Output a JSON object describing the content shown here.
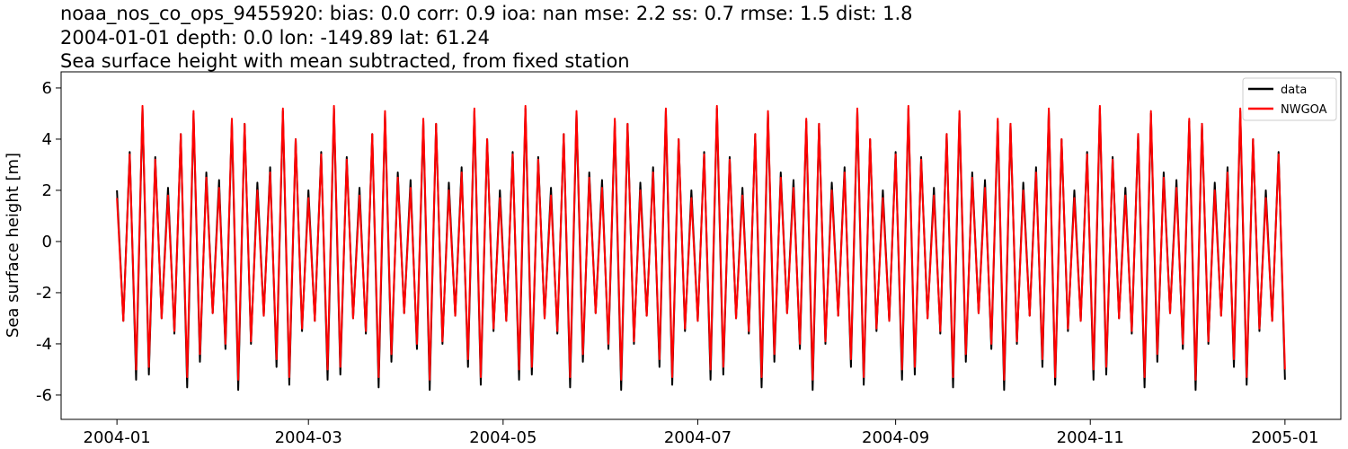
{
  "chart_data": {
    "type": "line",
    "title_lines": [
      "noaa_nos_co_ops_9455920: bias: 0.0  corr: 0.9  ioa: nan  mse: 2.2  ss: 0.7  rmse: 1.5  dist: 1.8",
      "2004-01-01 depth: 0.0 lon: -149.89 lat: 61.24",
      "Sea surface height with mean subtracted, from fixed station"
    ],
    "ylabel": "Sea surface height [m]",
    "x": [
      0,
      2,
      4,
      6,
      8,
      10,
      12,
      14,
      16,
      18,
      20,
      22,
      24,
      26,
      28,
      30,
      32,
      34,
      36,
      38,
      40,
      42,
      44,
      46,
      48,
      50,
      52,
      54,
      56,
      58,
      60,
      62,
      64,
      66,
      68,
      70,
      72,
      74,
      76,
      78,
      80,
      82,
      84,
      86,
      88,
      90,
      92,
      94,
      96,
      98,
      100,
      102,
      104,
      106,
      108,
      110,
      112,
      114,
      116,
      118,
      120,
      122,
      124,
      126,
      128,
      130,
      132,
      134,
      136,
      138,
      140,
      142,
      144,
      146,
      148,
      150,
      152,
      154,
      156,
      158,
      160,
      162,
      164,
      166,
      168,
      170,
      172,
      174,
      176,
      178,
      180,
      182,
      184,
      186,
      188,
      190,
      192,
      194,
      196,
      198,
      200,
      202,
      204,
      206,
      208,
      210,
      212,
      214,
      216,
      218,
      220,
      222,
      224,
      226,
      228,
      230,
      232,
      234,
      236,
      238,
      240,
      242,
      244,
      246,
      248,
      250,
      252,
      254,
      256,
      258,
      260,
      262,
      264,
      266,
      268,
      270,
      272,
      274,
      276,
      278,
      280,
      282,
      284,
      286,
      288,
      290,
      292,
      294,
      296,
      298,
      300,
      302,
      304,
      306,
      308,
      310,
      312,
      314,
      316,
      318,
      320,
      322,
      324,
      326,
      328,
      330,
      332,
      334,
      336,
      338,
      340,
      342,
      344,
      346,
      348,
      350,
      352,
      354,
      356,
      358,
      360,
      362,
      364,
      366
    ],
    "series": [
      {
        "name": "data",
        "color": "#000000",
        "values": [
          2.0,
          -3.1,
          3.5,
          -5.4,
          5.2,
          -5.2,
          3.3,
          -3.0,
          2.1,
          -3.6,
          4.2,
          -5.7,
          5.0,
          -4.7,
          2.7,
          -2.8,
          2.4,
          -4.2,
          4.7,
          -5.8,
          4.6,
          -4.0,
          2.3,
          -2.9,
          2.9,
          -4.9,
          5.1,
          -5.6,
          4.0,
          -3.5,
          2.0,
          -3.1,
          3.5,
          -5.4,
          5.2,
          -5.2,
          3.3,
          -3.0,
          2.1,
          -3.6,
          4.2,
          -5.7,
          5.0,
          -4.7,
          2.7,
          -2.8,
          2.4,
          -4.2,
          4.7,
          -5.8,
          4.6,
          -4.0,
          2.3,
          -2.9,
          2.9,
          -4.9,
          5.1,
          -5.6,
          4.0,
          -3.5,
          2.0,
          -3.1,
          3.5,
          -5.4,
          5.2,
          -5.2,
          3.3,
          -3.0,
          2.1,
          -3.6,
          4.2,
          -5.7,
          5.0,
          -4.7,
          2.7,
          -2.8,
          2.4,
          -4.2,
          4.7,
          -5.8,
          4.6,
          -4.0,
          2.3,
          -2.9,
          2.9,
          -4.9,
          5.1,
          -5.6,
          4.0,
          -3.5,
          2.0,
          -3.1,
          3.5,
          -5.4,
          5.2,
          -5.2,
          3.3,
          -3.0,
          2.1,
          -3.6,
          4.2,
          -5.7,
          5.0,
          -4.7,
          2.7,
          -2.8,
          2.4,
          -4.2,
          4.7,
          -5.8,
          4.6,
          -4.0,
          2.3,
          -2.9,
          2.9,
          -4.9,
          5.1,
          -5.6,
          4.0,
          -3.5,
          2.0,
          -3.1,
          3.5,
          -5.4,
          5.2,
          -5.2,
          3.3,
          -3.0,
          2.1,
          -3.6,
          4.2,
          -5.7,
          5.0,
          -4.7,
          2.7,
          -2.8,
          2.4,
          -4.2,
          4.7,
          -5.8,
          4.6,
          -4.0,
          2.3,
          -2.9,
          2.9,
          -4.9,
          5.1,
          -5.6,
          4.0,
          -3.5,
          2.0,
          -3.1,
          3.5,
          -5.4,
          5.2,
          -5.2,
          3.3,
          -3.0,
          2.1,
          -3.6,
          4.2,
          -5.7,
          5.0,
          -4.7,
          2.7,
          -2.8,
          2.4,
          -4.2,
          4.7,
          -5.8,
          4.6,
          -4.0,
          2.3,
          -2.9,
          2.9,
          -4.9,
          5.1,
          -5.6,
          4.0,
          -3.5,
          2.0,
          -3.1,
          3.5,
          -5.4
        ]
      },
      {
        "name": "NWGOA",
        "color": "#ff0000",
        "values": [
          1.7,
          -3.1,
          3.4,
          -5.0,
          5.3,
          -4.9,
          3.2,
          -3.0,
          1.8,
          -3.5,
          4.2,
          -5.3,
          5.1,
          -4.4,
          2.5,
          -2.8,
          2.1,
          -4.0,
          4.8,
          -5.4,
          4.6,
          -3.9,
          2.0,
          -2.9,
          2.7,
          -4.6,
          5.2,
          -5.3,
          4.0,
          -3.4,
          1.7,
          -3.1,
          3.4,
          -5.0,
          5.3,
          -4.9,
          3.2,
          -3.0,
          1.8,
          -3.5,
          4.2,
          -5.3,
          5.1,
          -4.4,
          2.5,
          -2.8,
          2.1,
          -4.0,
          4.8,
          -5.4,
          4.6,
          -3.9,
          2.0,
          -2.9,
          2.7,
          -4.6,
          5.2,
          -5.3,
          4.0,
          -3.4,
          1.7,
          -3.1,
          3.4,
          -5.0,
          5.3,
          -4.9,
          3.2,
          -3.0,
          1.8,
          -3.5,
          4.2,
          -5.3,
          5.1,
          -4.4,
          2.5,
          -2.8,
          2.1,
          -4.0,
          4.8,
          -5.4,
          4.6,
          -3.9,
          2.0,
          -2.9,
          2.7,
          -4.6,
          5.2,
          -5.3,
          4.0,
          -3.4,
          1.7,
          -3.1,
          3.4,
          -5.0,
          5.3,
          -4.9,
          3.2,
          -3.0,
          1.8,
          -3.5,
          4.2,
          -5.3,
          5.1,
          -4.4,
          2.5,
          -2.8,
          2.1,
          -4.0,
          4.8,
          -5.4,
          4.6,
          -3.9,
          2.0,
          -2.9,
          2.7,
          -4.6,
          5.2,
          -5.3,
          4.0,
          -3.4,
          1.7,
          -3.1,
          3.4,
          -5.0,
          5.3,
          -4.9,
          3.2,
          -3.0,
          1.8,
          -3.5,
          4.2,
          -5.3,
          5.1,
          -4.4,
          2.5,
          -2.8,
          2.1,
          -4.0,
          4.8,
          -5.4,
          4.6,
          -3.9,
          2.0,
          -2.9,
          2.7,
          -4.6,
          5.2,
          -5.3,
          4.0,
          -3.4,
          1.7,
          -3.1,
          3.4,
          -5.0,
          5.3,
          -4.9,
          3.2,
          -3.0,
          1.8,
          -3.5,
          4.2,
          -5.3,
          5.1,
          -4.4,
          2.5,
          -2.8,
          2.1,
          -4.0,
          4.8,
          -5.4,
          4.6,
          -3.9,
          2.0,
          -2.9,
          2.7,
          -4.6,
          5.2,
          -5.3,
          4.0,
          -3.4,
          1.7,
          -3.1,
          3.4,
          -5.0
        ]
      }
    ],
    "xlim": [
      -17.5,
      383.5
    ],
    "xticks": [
      {
        "value": 0,
        "label": "2004-01"
      },
      {
        "value": 60,
        "label": "2004-03"
      },
      {
        "value": 121,
        "label": "2004-05"
      },
      {
        "value": 182,
        "label": "2004-07"
      },
      {
        "value": 244,
        "label": "2004-09"
      },
      {
        "value": 305,
        "label": "2004-11"
      },
      {
        "value": 366,
        "label": "2005-01"
      }
    ],
    "ylim": [
      -6.95,
      6.63
    ],
    "yticks": [
      -6,
      -4,
      -2,
      0,
      2,
      4,
      6
    ],
    "legend": "upper right"
  }
}
